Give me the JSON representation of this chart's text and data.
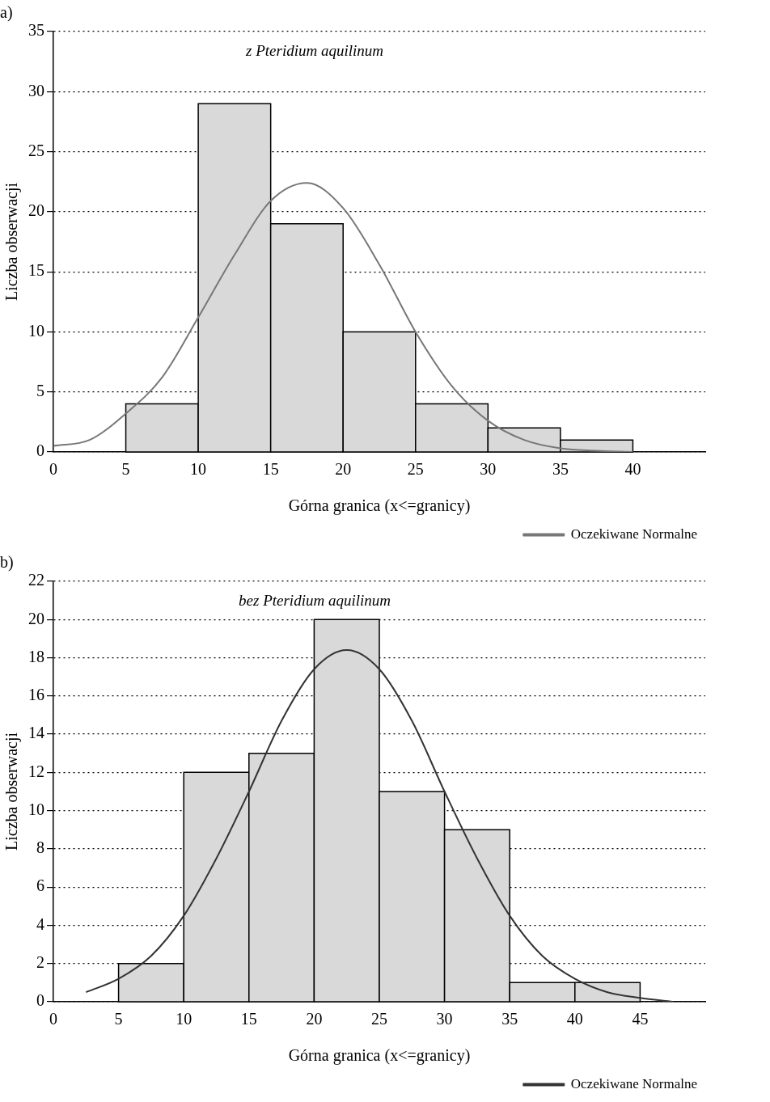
{
  "chart_data": [
    {
      "type": "histogram",
      "title": "a)",
      "xlabel": "Górna granica (x<=granicy)",
      "ylabel": "Liczba obserwacji",
      "bins": [
        5,
        10,
        15,
        20,
        25,
        30,
        35,
        40
      ],
      "values": [
        4,
        29,
        19,
        10,
        4,
        2,
        1
      ],
      "color": "#d9d9d9",
      "series": [
        {
          "type": "line",
          "name": "Oczekiwane Normalne",
          "color": "#777777",
          "x": [
            0,
            2.5,
            5,
            7.5,
            10,
            12.5,
            15,
            17.5,
            20,
            22.5,
            25,
            27.5,
            30,
            32.5,
            35,
            37.5,
            40
          ],
          "values": [
            0.5,
            1,
            3.2,
            6.2,
            11.2,
            16.4,
            20.9,
            22.4,
            20.3,
            15.6,
            10,
            5.5,
            2.6,
            1,
            0.3,
            0.1,
            0
          ]
        }
      ],
      "xlim": [
        0,
        45
      ],
      "xticks": [
        0,
        5,
        10,
        15,
        20,
        25,
        30,
        35,
        40
      ],
      "ylim": [
        0,
        35
      ],
      "yticks": [
        0,
        5,
        10,
        15,
        20,
        25,
        30,
        35
      ],
      "grid": "y",
      "legend": "bottom right",
      "annotations": [
        "z Pteridium aquilinum"
      ]
    },
    {
      "type": "histogram",
      "title": "b)",
      "xlabel": "Górna granica (x<=granicy)",
      "ylabel": "Liczba obserwacji",
      "bins": [
        5,
        10,
        15,
        20,
        25,
        30,
        35,
        40,
        45
      ],
      "values": [
        2,
        12,
        13,
        20,
        11,
        9,
        1,
        1
      ],
      "color": "#d9d9d9",
      "series": [
        {
          "type": "line",
          "name": "Oczekiwane Normalne",
          "color": "#333333",
          "x": [
            2.5,
            5,
            7.5,
            10,
            12.5,
            15,
            17.5,
            20,
            22.5,
            25,
            27.5,
            30,
            32.5,
            35,
            37.5,
            40,
            42.5,
            45,
            47.5
          ],
          "values": [
            0.5,
            1.2,
            2.4,
            4.5,
            7.5,
            11,
            14.7,
            17.4,
            18.4,
            17.4,
            14.7,
            11,
            7.5,
            4.5,
            2.4,
            1.2,
            0.5,
            0.2,
            0
          ]
        }
      ],
      "xlim": [
        0,
        50
      ],
      "xticks": [
        0,
        5,
        10,
        15,
        20,
        25,
        30,
        35,
        40,
        45
      ],
      "ylim": [
        0,
        22
      ],
      "yticks": [
        0,
        2,
        4,
        6,
        8,
        10,
        12,
        14,
        16,
        18,
        20,
        22
      ],
      "grid": "y",
      "legend": "bottom right",
      "annotations": [
        "bez Pteridium aquilinum"
      ]
    }
  ]
}
